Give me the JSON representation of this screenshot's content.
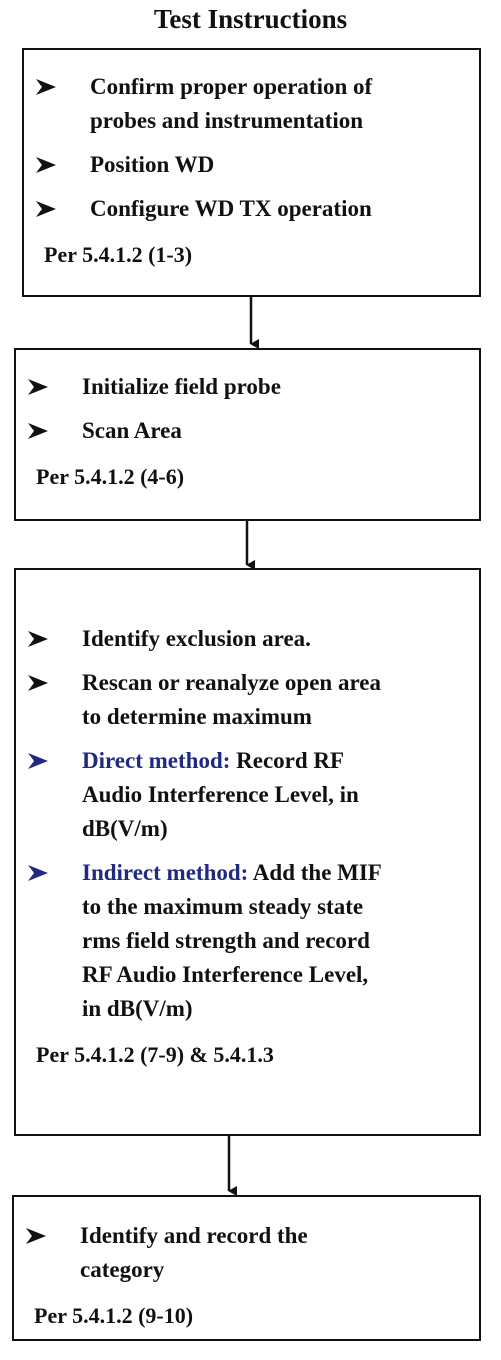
{
  "title": "Test Instructions",
  "boxes": [
    {
      "items": [
        {
          "lines": [
            "Confirm proper operation of",
            "probes and instrumentation"
          ]
        },
        {
          "lines": [
            "Position WD"
          ]
        },
        {
          "lines": [
            "Configure WD TX operation"
          ]
        }
      ],
      "ref": "Per 5.4.1.2 (1-3)"
    },
    {
      "items": [
        {
          "lines": [
            "Initialize field probe"
          ]
        },
        {
          "lines": [
            "Scan Area"
          ]
        }
      ],
      "ref": "Per 5.4.1.2 (4-6)"
    },
    {
      "items": [
        {
          "lines": [
            "Identify exclusion area."
          ]
        },
        {
          "lines": [
            "Rescan or reanalyze open area",
            "to determine maximum"
          ]
        },
        {
          "label": "Direct method:",
          "lines": [
            "Record RF",
            "Audio Interference Level, in",
            "dB(V/m)"
          ]
        },
        {
          "label": "Indirect method:",
          "lines": [
            "Add the MIF",
            "to the maximum steady state",
            "rms field strength and record",
            "RF Audio Interference Level,",
            "in dB(V/m)"
          ]
        }
      ],
      "ref": "Per 5.4.1.2 (7-9) & 5.4.1.3"
    },
    {
      "items": [
        {
          "lines": [
            "Identify and record the",
            "category"
          ]
        }
      ],
      "ref": "Per 5.4.1.2 (9-10)"
    }
  ]
}
